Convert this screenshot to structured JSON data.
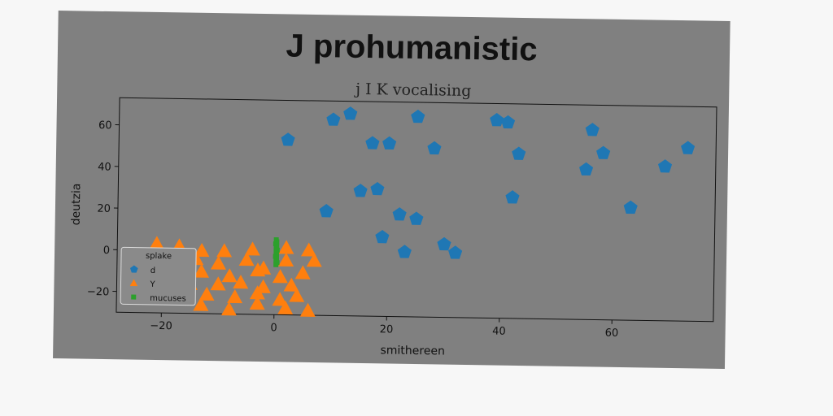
{
  "chart_data": {
    "type": "scatter",
    "title": "J prohumanistic",
    "subtitle": "j I K vocalising",
    "xlabel": "smithereen",
    "ylabel": "deutzia",
    "xlim": [
      -28,
      78
    ],
    "ylim": [
      -30,
      73
    ],
    "xticks": [
      -20,
      0,
      20,
      40,
      60
    ],
    "yticks": [
      -20,
      0,
      20,
      40,
      60
    ],
    "grid": false,
    "legend": {
      "title": "splake",
      "position": "lower-left"
    },
    "colors": {
      "d": "#1f77b4",
      "Y": "#ff7f0e",
      "mucuses": "#2ca02c",
      "plot_bg": "#808080"
    },
    "series": [
      {
        "name": "d",
        "marker": "pentagon",
        "points": [
          [
            2,
            54
          ],
          [
            10,
            64
          ],
          [
            13,
            67
          ],
          [
            17,
            53
          ],
          [
            20,
            53
          ],
          [
            25,
            66
          ],
          [
            28,
            51
          ],
          [
            39,
            65
          ],
          [
            41,
            64
          ],
          [
            43,
            49
          ],
          [
            56,
            61
          ],
          [
            58,
            50
          ],
          [
            55,
            42
          ],
          [
            69,
            44
          ],
          [
            73,
            53
          ],
          [
            15,
            30
          ],
          [
            18,
            31
          ],
          [
            42,
            28
          ],
          [
            9,
            20
          ],
          [
            22,
            19
          ],
          [
            25,
            17
          ],
          [
            63,
            24
          ],
          [
            19,
            8
          ],
          [
            23,
            1
          ],
          [
            30,
            5
          ],
          [
            32,
            1
          ]
        ]
      },
      {
        "name": "Y",
        "marker": "triangle",
        "points": [
          [
            -21,
            3
          ],
          [
            -17,
            2
          ],
          [
            -13,
            0
          ],
          [
            -9,
            0
          ],
          [
            -4,
            1
          ],
          [
            2,
            2
          ],
          [
            6,
            1
          ],
          [
            -22,
            -4
          ],
          [
            -18,
            -6
          ],
          [
            -14,
            -4
          ],
          [
            -10,
            -6
          ],
          [
            -5,
            -4
          ],
          [
            -2,
            -8
          ],
          [
            2,
            -4
          ],
          [
            7,
            -4
          ],
          [
            -19,
            -12
          ],
          [
            -13,
            -10
          ],
          [
            -8,
            -12
          ],
          [
            -3,
            -9
          ],
          [
            1,
            -12
          ],
          [
            5,
            -10
          ],
          [
            -15,
            -16
          ],
          [
            -10,
            -16
          ],
          [
            -6,
            -15
          ],
          [
            -2,
            -17
          ],
          [
            3,
            -16
          ],
          [
            -12,
            -21
          ],
          [
            -7,
            -22
          ],
          [
            -3,
            -20
          ],
          [
            1,
            -23
          ],
          [
            4,
            -21
          ],
          [
            -13,
            -26
          ],
          [
            -8,
            -28
          ],
          [
            -3,
            -25
          ],
          [
            2,
            -27
          ],
          [
            6,
            -28
          ]
        ]
      },
      {
        "name": "mucuses",
        "marker": "square",
        "points": [
          [
            0.2,
            6
          ],
          [
            0.3,
            5
          ],
          [
            0.1,
            4
          ],
          [
            0.3,
            3
          ],
          [
            0.2,
            2
          ],
          [
            0.4,
            1
          ],
          [
            0.2,
            0
          ],
          [
            0.3,
            -1
          ],
          [
            0.1,
            -2
          ],
          [
            0.3,
            -3
          ],
          [
            0.2,
            -4
          ],
          [
            0.4,
            -5
          ],
          [
            0.2,
            -6
          ]
        ]
      }
    ]
  }
}
